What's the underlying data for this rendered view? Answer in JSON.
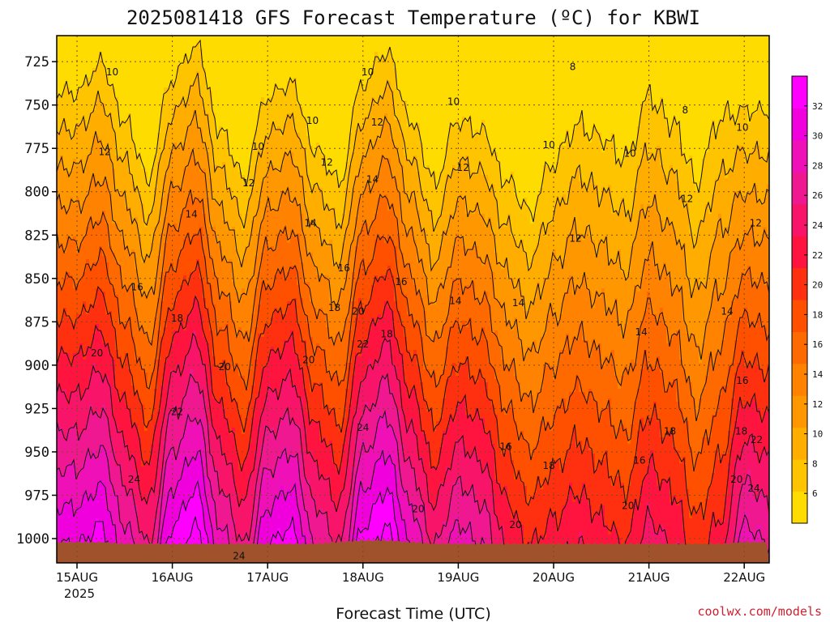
{
  "chart_data": {
    "type": "heatmap",
    "title": "2025081418 GFS Forecast Temperature (ºC) for KBWI",
    "xlabel": "Forecast Time (UTC)",
    "ylabel": "",
    "credit": "coolwx.com/models",
    "year_label": "2025",
    "x_ticks": [
      "15AUG",
      "16AUG",
      "17AUG",
      "18AUG",
      "19AUG",
      "20AUG",
      "21AUG",
      "22AUG"
    ],
    "xlim": [
      "2025-08-14 18Z",
      "2025-08-22 03Z"
    ],
    "y_ticks": [
      725,
      750,
      775,
      800,
      825,
      850,
      875,
      900,
      925,
      950,
      975,
      1000
    ],
    "ylim": [
      1014,
      710
    ],
    "y_scale": "linear-inverted",
    "colorbar": {
      "ticks": [
        6,
        8,
        10,
        12,
        14,
        16,
        18,
        20,
        22,
        24,
        26,
        28,
        30,
        32
      ],
      "range": [
        4,
        34
      ],
      "colors": [
        "#ffdc00",
        "#ffc400",
        "#ffae00",
        "#ff9800",
        "#ff8200",
        "#ff6a00",
        "#ff5000",
        "#ff3010",
        "#ff1440",
        "#f81468",
        "#f01890",
        "#f010b8",
        "#f000dc",
        "#ff00ff"
      ]
    },
    "grid": true,
    "time_days": [
      0,
      0.25,
      0.5,
      0.75,
      1,
      1.25,
      1.5,
      1.75,
      2,
      2.25,
      2.5,
      2.75,
      3,
      3.25,
      3.5,
      3.75,
      4,
      4.25,
      4.5,
      4.75,
      5,
      5.25,
      5.5,
      5.75,
      6,
      6.25,
      6.5,
      6.75,
      7,
      7.25,
      7.5
    ],
    "surface_temp_c": [
      30,
      31,
      27,
      24,
      31,
      33,
      27,
      24,
      30,
      31,
      26,
      24,
      31,
      33,
      28,
      24,
      27,
      26,
      22,
      20,
      21,
      22,
      21,
      20,
      23,
      22,
      19,
      21,
      27,
      26,
      25
    ],
    "lapse_c_per_100hpa": [
      9.2,
      9,
      8.6,
      8.5,
      9.3,
      9.4,
      8.8,
      8.5,
      9.3,
      9.4,
      8.8,
      8.6,
      9.4,
      9.5,
      9,
      8.6,
      8.6,
      8.4,
      7.6,
      7.3,
      6.8,
      6.6,
      6.4,
      6.3,
      6.6,
      6.6,
      6.2,
      6.1,
      8.4,
      8,
      7.6
    ],
    "surface_pressure_hpa": [
      1002,
      1002,
      1003,
      1003,
      1003,
      1003,
      1003,
      1003,
      1003,
      1003,
      1003,
      1002,
      1001,
      1001,
      1002,
      1003,
      1003,
      1003,
      1003,
      1003,
      1003,
      1003,
      1003,
      1003,
      1003,
      1003,
      1003,
      1003,
      1002,
      1002,
      1002
    ],
    "contour_labels": [
      {
        "text": "10",
        "day": 0.37,
        "p": 731
      },
      {
        "text": "12",
        "day": 0.29,
        "p": 777
      },
      {
        "text": "14",
        "day": 1.2,
        "p": 813
      },
      {
        "text": "16",
        "day": 0.63,
        "p": 855
      },
      {
        "text": "18",
        "day": 1.05,
        "p": 873
      },
      {
        "text": "20",
        "day": 0.21,
        "p": 893
      },
      {
        "text": "22",
        "day": 1.05,
        "p": 927
      },
      {
        "text": "24",
        "day": 0.6,
        "p": 966
      },
      {
        "text": "24",
        "day": 1.7,
        "p": 1010
      },
      {
        "text": "10",
        "day": 2.47,
        "p": 759
      },
      {
        "text": "12",
        "day": 1.8,
        "p": 795
      },
      {
        "text": "14",
        "day": 2.45,
        "p": 818
      },
      {
        "text": "10",
        "day": 1.9,
        "p": 774
      },
      {
        "text": "20",
        "day": 2.43,
        "p": 897
      },
      {
        "text": "20",
        "day": 1.55,
        "p": 901
      },
      {
        "text": "10",
        "day": 3.05,
        "p": 731
      },
      {
        "text": "12",
        "day": 3.15,
        "p": 760
      },
      {
        "text": "14",
        "day": 3.1,
        "p": 793
      },
      {
        "text": "16",
        "day": 2.8,
        "p": 844
      },
      {
        "text": "18",
        "day": 2.7,
        "p": 867
      },
      {
        "text": "20",
        "day": 2.95,
        "p": 869
      },
      {
        "text": "22",
        "day": 3.0,
        "p": 888
      },
      {
        "text": "24",
        "day": 3.0,
        "p": 936
      },
      {
        "text": "16",
        "day": 3.4,
        "p": 852
      },
      {
        "text": "18",
        "day": 3.25,
        "p": 882
      },
      {
        "text": "20",
        "day": 3.58,
        "p": 983
      },
      {
        "text": "12",
        "day": 2.62,
        "p": 783
      },
      {
        "text": "10",
        "day": 3.95,
        "p": 748
      },
      {
        "text": "12",
        "day": 4.05,
        "p": 786
      },
      {
        "text": "14",
        "day": 3.97,
        "p": 863
      },
      {
        "text": "14",
        "day": 4.63,
        "p": 864
      },
      {
        "text": "16",
        "day": 4.5,
        "p": 947
      },
      {
        "text": "18",
        "day": 4.95,
        "p": 958
      },
      {
        "text": "20",
        "day": 4.6,
        "p": 992
      },
      {
        "text": "8",
        "day": 5.2,
        "p": 728
      },
      {
        "text": "10",
        "day": 4.95,
        "p": 773
      },
      {
        "text": "12",
        "day": 5.23,
        "p": 827
      },
      {
        "text": "10",
        "day": 5.8,
        "p": 778
      },
      {
        "text": "8",
        "day": 6.38,
        "p": 753
      },
      {
        "text": "12",
        "day": 6.4,
        "p": 804
      },
      {
        "text": "14",
        "day": 5.92,
        "p": 881
      },
      {
        "text": "16",
        "day": 5.9,
        "p": 955
      },
      {
        "text": "18",
        "day": 6.22,
        "p": 938
      },
      {
        "text": "20",
        "day": 5.78,
        "p": 981
      },
      {
        "text": "10",
        "day": 6.98,
        "p": 763
      },
      {
        "text": "12",
        "day": 7.12,
        "p": 818
      },
      {
        "text": "14",
        "day": 6.82,
        "p": 869
      },
      {
        "text": "16",
        "day": 6.98,
        "p": 909
      },
      {
        "text": "18",
        "day": 6.97,
        "p": 938
      },
      {
        "text": "20",
        "day": 6.92,
        "p": 966
      },
      {
        "text": "22",
        "day": 7.13,
        "p": 943
      },
      {
        "text": "24",
        "day": 7.1,
        "p": 971
      }
    ]
  }
}
